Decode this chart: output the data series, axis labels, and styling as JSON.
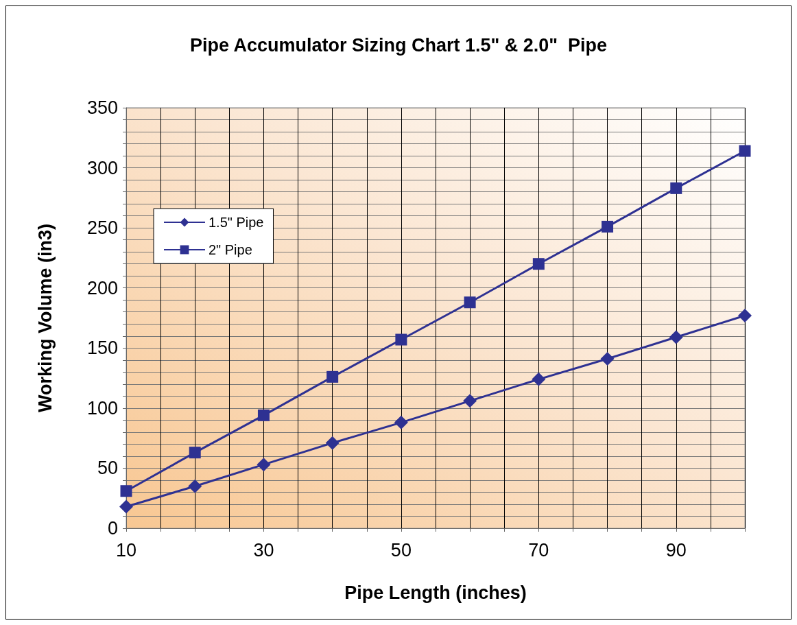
{
  "chart_data": {
    "type": "line",
    "title": "Pipe Accumulator Sizing Chart 1.5\" & 2.0\"  Pipe",
    "xlabel": "Pipe Length (inches)",
    "ylabel": "Working Volume (in3)",
    "x": [
      10,
      20,
      30,
      40,
      50,
      60,
      70,
      80,
      90,
      100
    ],
    "series": [
      {
        "name": "1.5\" Pipe",
        "color": "#2e3192",
        "marker": "diamond",
        "values": [
          18,
          35,
          53,
          71,
          88,
          106,
          124,
          141,
          159,
          177
        ]
      },
      {
        "name": "2\" Pipe",
        "color": "#2e3192",
        "marker": "square",
        "values": [
          31,
          63,
          94,
          126,
          157,
          188,
          220,
          251,
          283,
          314
        ]
      }
    ],
    "xlim": [
      10,
      100
    ],
    "xticks": [
      10,
      {
        "value": 15,
        "label": null
      },
      {
        "value": 20,
        "label": null
      },
      {
        "value": 25,
        "label": null
      },
      30,
      {
        "value": 35,
        "label": null
      },
      {
        "value": 40,
        "label": null
      },
      {
        "value": 45,
        "label": null
      },
      50,
      {
        "value": 55,
        "label": null
      },
      {
        "value": 60,
        "label": null
      },
      {
        "value": 65,
        "label": null
      },
      70,
      {
        "value": 75,
        "label": null
      },
      {
        "value": 80,
        "label": null
      },
      {
        "value": 85,
        "label": null
      },
      90,
      {
        "value": 95,
        "label": null
      },
      {
        "value": 100,
        "label": null
      }
    ],
    "ylim": [
      0,
      350
    ],
    "yticks": [
      0,
      {
        "value": 10,
        "label": null
      },
      {
        "value": 20,
        "label": null
      },
      {
        "value": 30,
        "label": null
      },
      {
        "value": 40,
        "label": null
      },
      50,
      {
        "value": 60,
        "label": null
      },
      {
        "value": 70,
        "label": null
      },
      {
        "value": 80,
        "label": null
      },
      {
        "value": 90,
        "label": null
      },
      100,
      {
        "value": 110,
        "label": null
      },
      {
        "value": 120,
        "label": null
      },
      {
        "value": 130,
        "label": null
      },
      {
        "value": 140,
        "label": null
      },
      150,
      {
        "value": 160,
        "label": null
      },
      {
        "value": 170,
        "label": null
      },
      {
        "value": 180,
        "label": null
      },
      {
        "value": 190,
        "label": null
      },
      200,
      {
        "value": 210,
        "label": null
      },
      {
        "value": 220,
        "label": null
      },
      {
        "value": 230,
        "label": null
      },
      {
        "value": 240,
        "label": null
      },
      250,
      {
        "value": 260,
        "label": null
      },
      {
        "value": 270,
        "label": null
      },
      {
        "value": 280,
        "label": null
      },
      {
        "value": 290,
        "label": null
      },
      300,
      {
        "value": 310,
        "label": null
      },
      {
        "value": 320,
        "label": null
      },
      {
        "value": 330,
        "label": null
      },
      {
        "value": 340,
        "label": null
      },
      350
    ],
    "grid": true,
    "legend": "top left",
    "line_style": "solid"
  }
}
